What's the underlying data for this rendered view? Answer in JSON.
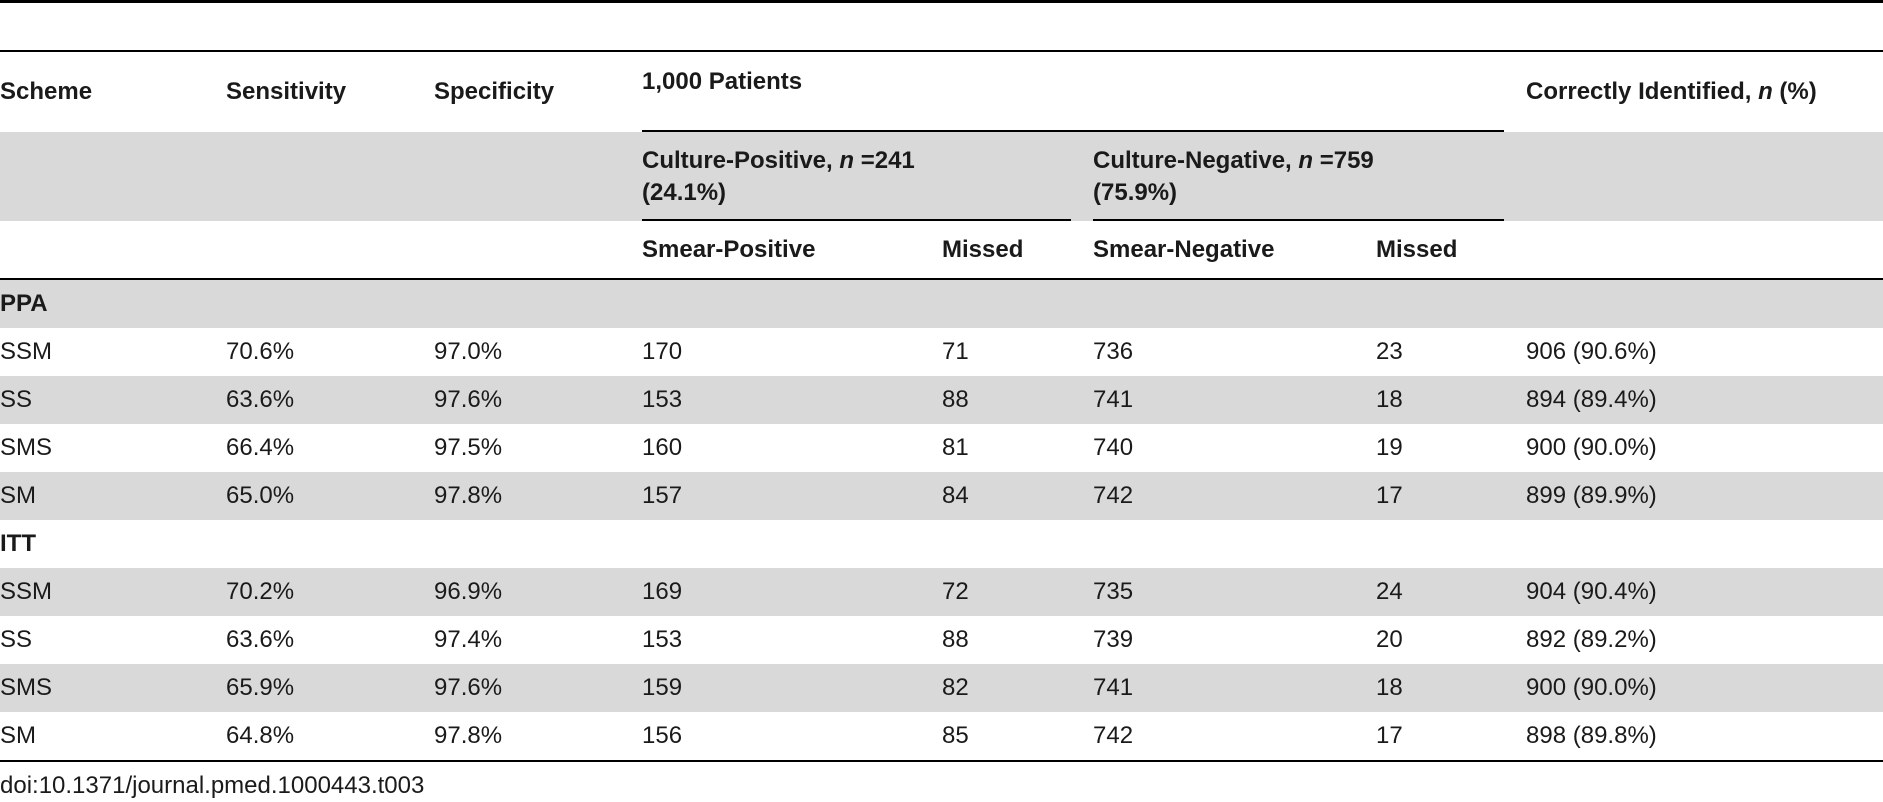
{
  "table": {
    "headers": {
      "scheme": "Scheme",
      "sensitivity": "Sensitivity",
      "specificity": "Specificity",
      "patients_group": "1,000 Patients",
      "correctly_identified_prefix": "Correctly Identified, ",
      "correctly_identified_n": "n",
      "correctly_identified_suffix": " (%)",
      "culture_positive_prefix": "Culture-Positive, ",
      "culture_positive_n": "n",
      "culture_positive_suffix": " =241",
      "culture_positive_pct": "(24.1%)",
      "culture_negative_prefix": "Culture-Negative, ",
      "culture_negative_n": "n",
      "culture_negative_suffix": " =759",
      "culture_negative_pct": "(75.9%)",
      "smear_positive": "Smear-Positive",
      "missed_pos": "Missed",
      "smear_negative": "Smear-Negative",
      "missed_neg": "Missed"
    },
    "sections": [
      {
        "title": "PPA",
        "rows": [
          {
            "scheme": "SSM",
            "sensitivity": "70.6%",
            "specificity": "97.0%",
            "smear_positive": "170",
            "missed_pos": "71",
            "smear_negative": "736",
            "missed_neg": "23",
            "correct": "906 (90.6%)"
          },
          {
            "scheme": "SS",
            "sensitivity": "63.6%",
            "specificity": "97.6%",
            "smear_positive": "153",
            "missed_pos": "88",
            "smear_negative": "741",
            "missed_neg": "18",
            "correct": "894 (89.4%)"
          },
          {
            "scheme": "SMS",
            "sensitivity": "66.4%",
            "specificity": "97.5%",
            "smear_positive": "160",
            "missed_pos": "81",
            "smear_negative": "740",
            "missed_neg": "19",
            "correct": "900 (90.0%)"
          },
          {
            "scheme": "SM",
            "sensitivity": "65.0%",
            "specificity": "97.8%",
            "smear_positive": "157",
            "missed_pos": "84",
            "smear_negative": "742",
            "missed_neg": "17",
            "correct": "899 (89.9%)"
          }
        ]
      },
      {
        "title": "ITT",
        "rows": [
          {
            "scheme": "SSM",
            "sensitivity": "70.2%",
            "specificity": "96.9%",
            "smear_positive": "169",
            "missed_pos": "72",
            "smear_negative": "735",
            "missed_neg": "24",
            "correct": "904 (90.4%)"
          },
          {
            "scheme": "SS",
            "sensitivity": "63.6%",
            "specificity": "97.4%",
            "smear_positive": "153",
            "missed_pos": "88",
            "smear_negative": "739",
            "missed_neg": "20",
            "correct": "892 (89.2%)"
          },
          {
            "scheme": "SMS",
            "sensitivity": "65.9%",
            "specificity": "97.6%",
            "smear_positive": "159",
            "missed_pos": "82",
            "smear_negative": "741",
            "missed_neg": "18",
            "correct": "900 (90.0%)"
          },
          {
            "scheme": "SM",
            "sensitivity": "64.8%",
            "specificity": "97.8%",
            "smear_positive": "156",
            "missed_pos": "85",
            "smear_negative": "742",
            "missed_neg": "17",
            "correct": "898 (89.8%)"
          }
        ]
      }
    ]
  },
  "footer": {
    "doi": "doi:10.1371/journal.pmed.1000443.t003"
  }
}
